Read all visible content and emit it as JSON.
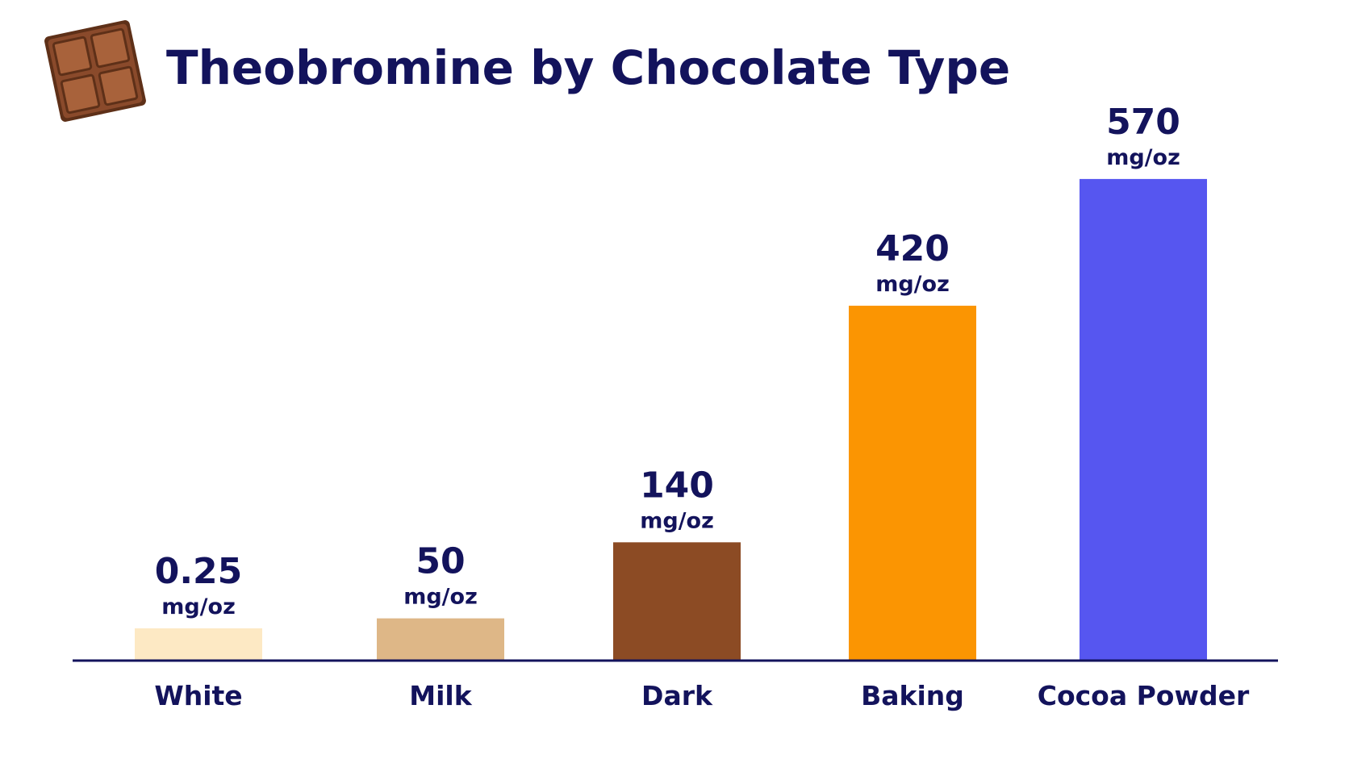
{
  "chart_data": {
    "type": "bar",
    "title": "Theobromine by Chocolate Type",
    "xlabel": "",
    "ylabel": "",
    "unit": "mg/oz",
    "categories": [
      "White",
      "Milk",
      "Dark",
      "Baking",
      "Cocoa Powder"
    ],
    "values": [
      0.25,
      50,
      140,
      420,
      570
    ],
    "value_labels": [
      "0.25",
      "50",
      "140",
      "420",
      "570"
    ],
    "colors": [
      "#fde9c4",
      "#deb787",
      "#8c4b24",
      "#fb9502",
      "#5656f0"
    ],
    "ylim": [
      0,
      610
    ],
    "grid": false,
    "legend": "none"
  },
  "colors": {
    "text": "#13135c",
    "axis": "#13135c",
    "icon_chocolate": "#8a4a2b",
    "icon_chocolate_light": "#a8623b",
    "icon_chocolate_dark": "#5e3018"
  },
  "icons": {
    "title_icon": "chocolate-bar-icon"
  }
}
